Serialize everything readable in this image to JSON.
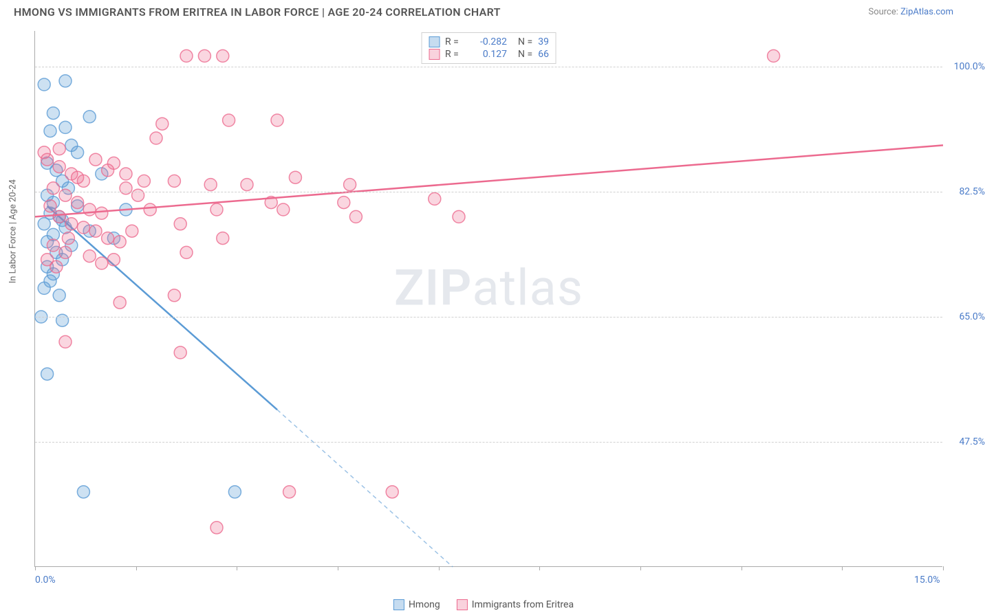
{
  "title": "HMONG VS IMMIGRANTS FROM ERITREA IN LABOR FORCE | AGE 20-24 CORRELATION CHART",
  "source_label": "Source: ",
  "source_name": "ZipAtlas.com",
  "y_axis_title": "In Labor Force | Age 20-24",
  "watermark_zip": "ZIP",
  "watermark_atlas": "atlas",
  "chart": {
    "type": "scatter",
    "xlim": [
      0,
      15
    ],
    "ylim": [
      30,
      105
    ],
    "x_ticks": [
      0,
      1.67,
      3.33,
      5.0,
      6.67,
      8.33,
      10.0,
      11.67,
      13.33,
      15.0
    ],
    "x_tick_labels_visible": {
      "0": "0.0%",
      "15": "15.0%"
    },
    "y_grid": [
      47.5,
      65.0,
      82.5,
      100.0
    ],
    "y_tick_labels": [
      "47.5%",
      "65.0%",
      "82.5%",
      "100.0%"
    ],
    "background_color": "#ffffff",
    "grid_color": "#d0d0d0",
    "axis_color": "#aaaaaa",
    "label_color": "#4a7bc8",
    "marker_radius": 9,
    "marker_opacity": 0.35,
    "marker_stroke_opacity": 0.8,
    "line_width": 2.5
  },
  "series": [
    {
      "name": "Hmong",
      "color": "#5b9bd5",
      "fill": "rgba(91,155,213,0.30)",
      "stroke": "rgba(91,155,213,0.8)",
      "R": "-0.282",
      "N": "39",
      "regression": {
        "x1": 0.2,
        "y1": 80.5,
        "x2": 4.0,
        "y2": 52.0,
        "dash_x2": 6.9,
        "dash_y2": 30.0
      },
      "points": [
        [
          0.15,
          97.5
        ],
        [
          0.5,
          98.0
        ],
        [
          0.3,
          93.5
        ],
        [
          0.9,
          93.0
        ],
        [
          0.25,
          91.0
        ],
        [
          0.6,
          89.0
        ],
        [
          0.2,
          86.5
        ],
        [
          0.35,
          85.5
        ],
        [
          0.45,
          84.0
        ],
        [
          0.55,
          83.0
        ],
        [
          0.2,
          82.0
        ],
        [
          0.3,
          81.0
        ],
        [
          0.7,
          80.5
        ],
        [
          0.25,
          79.5
        ],
        [
          0.4,
          79.0
        ],
        [
          0.15,
          78.0
        ],
        [
          0.5,
          77.5
        ],
        [
          0.3,
          76.5
        ],
        [
          0.2,
          75.5
        ],
        [
          0.6,
          75.0
        ],
        [
          0.35,
          74.0
        ],
        [
          0.45,
          73.0
        ],
        [
          0.2,
          72.0
        ],
        [
          0.3,
          71.0
        ],
        [
          0.25,
          70.0
        ],
        [
          0.15,
          69.0
        ],
        [
          0.4,
          68.0
        ],
        [
          0.45,
          78.5
        ],
        [
          0.1,
          65.0
        ],
        [
          0.45,
          64.5
        ],
        [
          0.2,
          57.0
        ],
        [
          0.8,
          40.5
        ],
        [
          3.3,
          40.5
        ],
        [
          1.5,
          80.0
        ],
        [
          1.1,
          85.0
        ],
        [
          0.9,
          77.0
        ],
        [
          1.3,
          76.0
        ],
        [
          0.7,
          88.0
        ],
        [
          0.5,
          91.5
        ]
      ]
    },
    {
      "name": "Immigrants from Eritrea",
      "color": "#ec6a8f",
      "fill": "rgba(236,106,143,0.28)",
      "stroke": "rgba(236,106,143,0.8)",
      "R": "0.127",
      "N": "66",
      "regression": {
        "x1": 0.0,
        "y1": 79.0,
        "x2": 15.0,
        "y2": 89.0
      },
      "points": [
        [
          0.4,
          86.0
        ],
        [
          0.6,
          85.0
        ],
        [
          0.8,
          84.0
        ],
        [
          1.0,
          87.0
        ],
        [
          1.2,
          85.5
        ],
        [
          1.3,
          86.5
        ],
        [
          1.5,
          85.0
        ],
        [
          1.8,
          84.0
        ],
        [
          0.3,
          83.0
        ],
        [
          0.5,
          82.0
        ],
        [
          0.7,
          81.0
        ],
        [
          0.9,
          80.0
        ],
        [
          1.1,
          79.5
        ],
        [
          0.4,
          79.0
        ],
        [
          0.6,
          78.0
        ],
        [
          0.8,
          77.5
        ],
        [
          1.0,
          77.0
        ],
        [
          1.2,
          76.0
        ],
        [
          0.3,
          75.0
        ],
        [
          0.5,
          74.0
        ],
        [
          1.4,
          75.5
        ],
        [
          1.6,
          77.0
        ],
        [
          0.2,
          73.0
        ],
        [
          0.35,
          72.0
        ],
        [
          0.9,
          73.5
        ],
        [
          1.1,
          72.5
        ],
        [
          0.5,
          61.5
        ],
        [
          1.4,
          67.0
        ],
        [
          2.0,
          90.0
        ],
        [
          2.1,
          92.0
        ],
        [
          2.3,
          84.0
        ],
        [
          2.4,
          78.0
        ],
        [
          2.5,
          101.5
        ],
        [
          2.8,
          101.5
        ],
        [
          3.1,
          101.5
        ],
        [
          3.5,
          83.5
        ],
        [
          2.9,
          83.5
        ],
        [
          3.0,
          80.0
        ],
        [
          3.1,
          76.0
        ],
        [
          3.2,
          92.5
        ],
        [
          4.0,
          92.5
        ],
        [
          3.9,
          81.0
        ],
        [
          4.1,
          80.0
        ],
        [
          4.3,
          84.5
        ],
        [
          5.2,
          83.5
        ],
        [
          5.1,
          81.0
        ],
        [
          5.3,
          79.0
        ],
        [
          6.6,
          81.5
        ],
        [
          2.5,
          74.0
        ],
        [
          2.3,
          68.0
        ],
        [
          2.4,
          60.0
        ],
        [
          3.0,
          35.5
        ],
        [
          4.2,
          40.5
        ],
        [
          5.9,
          40.5
        ],
        [
          12.2,
          101.5
        ],
        [
          7.0,
          79.0
        ],
        [
          0.15,
          88.0
        ],
        [
          0.2,
          87.0
        ],
        [
          0.4,
          88.5
        ],
        [
          1.5,
          83.0
        ],
        [
          1.7,
          82.0
        ],
        [
          1.9,
          80.0
        ],
        [
          0.25,
          80.5
        ],
        [
          0.55,
          76.0
        ],
        [
          0.7,
          84.5
        ],
        [
          1.3,
          73.0
        ]
      ]
    }
  ],
  "legend_bottom": [
    {
      "label": "Hmong",
      "fill": "rgba(91,155,213,0.35)",
      "border": "#5b9bd5"
    },
    {
      "label": "Immigrants from Eritrea",
      "fill": "rgba(236,106,143,0.30)",
      "border": "#ec6a8f"
    }
  ],
  "legend_top_labels": {
    "r_eq": "R =",
    "n_eq": "N ="
  }
}
